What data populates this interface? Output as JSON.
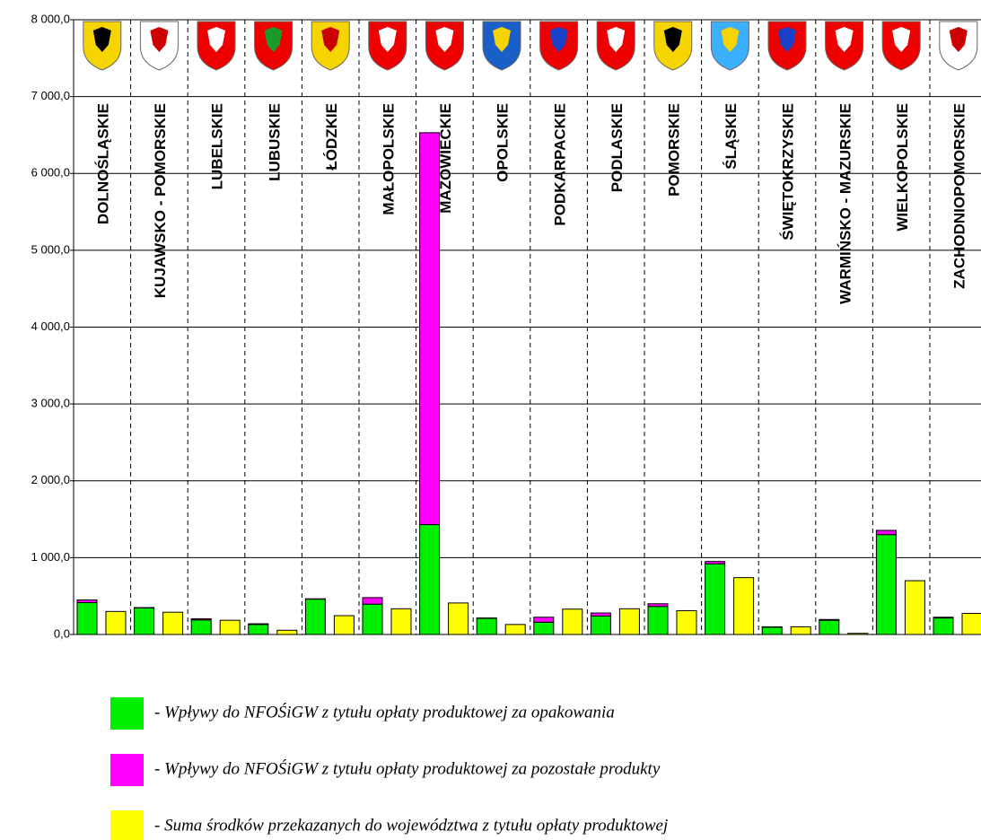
{
  "chart_data": {
    "type": "bar",
    "categories": [
      "DOLNOŚLĄSKIE",
      "KUJAWSKO - POMORSKIE",
      "LUBELSKIE",
      "LUBUSKIE",
      "ŁÓDZKIE",
      "MAŁOPOLSKIE",
      "MAZOWIECKIE",
      "OPOLSKIE",
      "PODKARPACKIE",
      "PODLASKIE",
      "POMORSKIE",
      "ŚLĄSKIE",
      "ŚWIĘTOKRZYSKIE",
      "WARMIŃSKO - MAZURSKIE",
      "WIELKOPOLSKIE",
      "ZACHODNIOPOMORSKIE"
    ],
    "series": [
      {
        "name": "- Wpływy do NFOŚiGW z tytułu opłaty produktowej za opakowania",
        "color": "#00ee00",
        "stack": "a",
        "values": [
          415,
          345,
          190,
          130,
          460,
          395,
          1430,
          210,
          160,
          240,
          365,
          920,
          95,
          185,
          1300,
          215
        ]
      },
      {
        "name": "- Wpływy do NFOŚiGW z tytułu opłaty produktowej za pozostałe produkty",
        "color": "#ff00ff",
        "stack": "a",
        "values": [
          35,
          5,
          15,
          10,
          5,
          85,
          5100,
          5,
          65,
          40,
          35,
          30,
          5,
          10,
          55,
          10
        ]
      },
      {
        "name": "- Suma środków przekazanych do województwa z tytułu opłaty produktowej",
        "color": "#ffff00",
        "stack": "b",
        "values": [
          300,
          290,
          185,
          55,
          245,
          335,
          410,
          130,
          330,
          335,
          310,
          740,
          100,
          15,
          700,
          275
        ]
      }
    ],
    "ylim": [
      0,
      8000
    ],
    "yticks": [
      {
        "value": 0,
        "label": "0,0"
      },
      {
        "value": 1000,
        "label": "1 000,0"
      },
      {
        "value": 2000,
        "label": "2 000,0"
      },
      {
        "value": 3000,
        "label": "3 000,0"
      },
      {
        "value": 4000,
        "label": "4 000,0"
      },
      {
        "value": 5000,
        "label": "5 000,0"
      },
      {
        "value": 6000,
        "label": "6 000,0"
      },
      {
        "value": 7000,
        "label": "7 000,0"
      },
      {
        "value": 8000,
        "label": "8 000,0"
      }
    ],
    "grid": true
  }
}
